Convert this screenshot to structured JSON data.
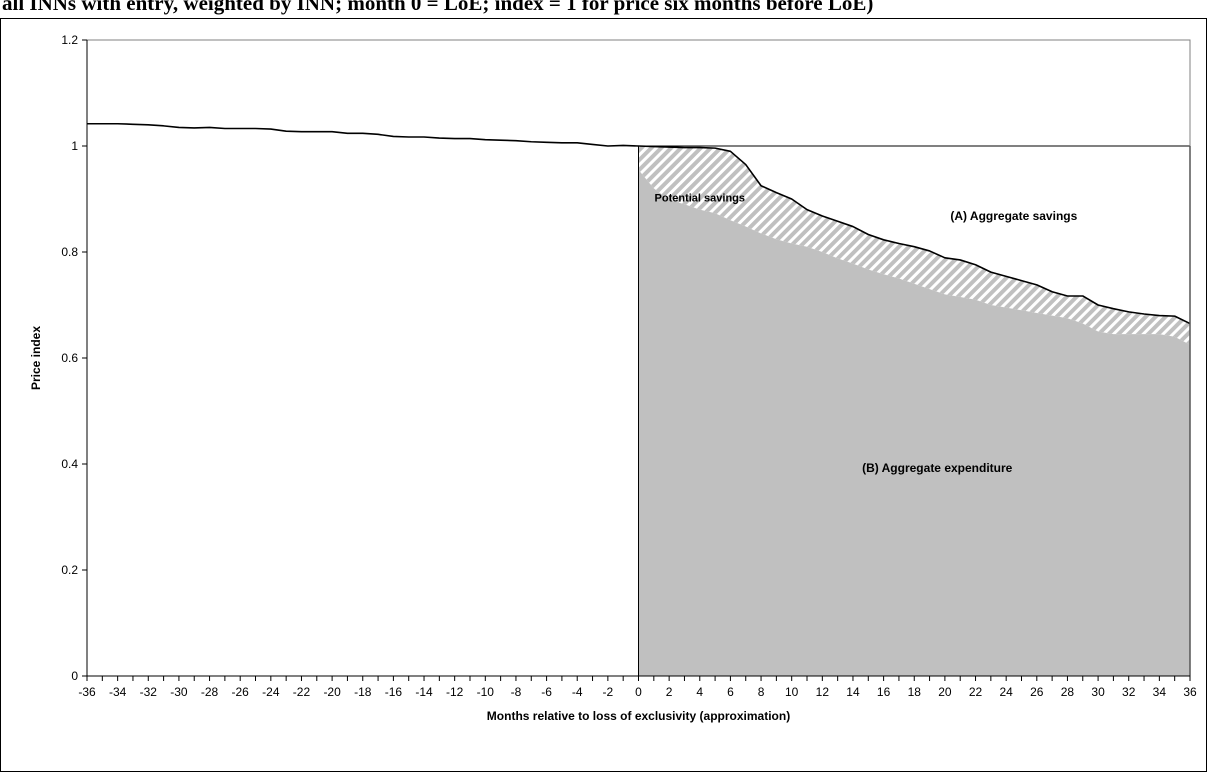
{
  "caption": "all INNs with entry, weighted by INN; month 0 = LoE; index = 1 for price six months before LoE)",
  "chart_data": {
    "type": "area",
    "title": "",
    "xlabel": "Months relative to loss of exclusivity (approximation)",
    "ylabel": "Price index",
    "xlim": [
      -36,
      36
    ],
    "ylim": [
      0,
      1.2
    ],
    "x_ticks": [
      -36,
      -34,
      -32,
      -30,
      -28,
      -26,
      -24,
      -22,
      -20,
      -18,
      -16,
      -14,
      -12,
      -10,
      -8,
      -6,
      -4,
      -2,
      0,
      2,
      4,
      6,
      8,
      10,
      12,
      14,
      16,
      18,
      20,
      22,
      24,
      26,
      28,
      30,
      32,
      34,
      36
    ],
    "x_tick_labels": [
      "-36",
      "-34",
      "-32",
      "-30",
      "-28",
      "-26",
      "-24",
      "-22",
      "-20",
      "-18",
      "-16",
      "-14",
      "-12",
      "-10",
      "-8",
      "-6",
      "-4",
      "-2",
      "0",
      "2",
      "4",
      "6",
      "8",
      "10",
      "12",
      "14",
      "16",
      "18",
      "20",
      "22",
      "24",
      "26",
      "28",
      "30",
      "32",
      "34",
      "36"
    ],
    "y_ticks": [
      0,
      0.2,
      0.4,
      0.6,
      0.8,
      1,
      1.2
    ],
    "y_tick_labels": [
      "0",
      "0.2",
      "0.4",
      "0.6",
      "0.8",
      "1",
      "1.2"
    ],
    "grid": false,
    "reference_line": {
      "y": 1,
      "x_from": 0,
      "x_to": 36
    },
    "series": [
      {
        "role": "price-index-line",
        "x": [
          -36,
          -35,
          -34,
          -33,
          -32,
          -31,
          -30,
          -29,
          -28,
          -27,
          -26,
          -25,
          -24,
          -23,
          -22,
          -21,
          -20,
          -19,
          -18,
          -17,
          -16,
          -15,
          -14,
          -13,
          -12,
          -11,
          -10,
          -9,
          -8,
          -7,
          -6,
          -5,
          -4,
          -3,
          -2,
          -1,
          0,
          1,
          2,
          3,
          4,
          5,
          6,
          7,
          8,
          9,
          10,
          11,
          12,
          13,
          14,
          15,
          16,
          17,
          18,
          19,
          20,
          21,
          22,
          23,
          24,
          25,
          26,
          27,
          28,
          29,
          30,
          31,
          32,
          33,
          34,
          35,
          36
        ],
        "values": [
          1.042,
          1.042,
          1.042,
          1.041,
          1.04,
          1.038,
          1.035,
          1.034,
          1.035,
          1.033,
          1.033,
          1.033,
          1.032,
          1.028,
          1.027,
          1.027,
          1.027,
          1.024,
          1.024,
          1.022,
          1.018,
          1.017,
          1.017,
          1.015,
          1.014,
          1.014,
          1.012,
          1.011,
          1.01,
          1.008,
          1.007,
          1.006,
          1.006,
          1.003,
          1.0,
          1.001,
          1.0,
          0.999,
          0.998,
          0.997,
          0.997,
          0.996,
          0.99,
          0.965,
          0.925,
          0.912,
          0.9,
          0.88,
          0.868,
          0.858,
          0.848,
          0.833,
          0.823,
          0.816,
          0.81,
          0.802,
          0.789,
          0.785,
          0.776,
          0.762,
          0.754,
          0.746,
          0.738,
          0.725,
          0.717,
          0.717,
          0.7,
          0.693,
          0.687,
          0.683,
          0.68,
          0.679,
          0.665
        ]
      },
      {
        "role": "expenditure-boundary",
        "x": [
          0,
          1,
          2,
          3,
          4,
          5,
          6,
          7,
          8,
          9,
          10,
          11,
          12,
          13,
          14,
          15,
          16,
          17,
          18,
          19,
          20,
          21,
          22,
          23,
          24,
          25,
          26,
          27,
          28,
          29,
          30,
          31,
          32,
          33,
          34,
          35,
          36
        ],
        "values": [
          0.955,
          0.92,
          0.898,
          0.89,
          0.88,
          0.873,
          0.86,
          0.848,
          0.835,
          0.824,
          0.816,
          0.81,
          0.8,
          0.788,
          0.778,
          0.767,
          0.758,
          0.75,
          0.74,
          0.73,
          0.72,
          0.715,
          0.71,
          0.7,
          0.695,
          0.69,
          0.685,
          0.68,
          0.675,
          0.665,
          0.65,
          0.645,
          0.645,
          0.645,
          0.645,
          0.64,
          0.625
        ]
      }
    ],
    "annotations": [
      {
        "text": "Potential savings",
        "x": 4,
        "y": 0.895
      },
      {
        "text": "(A) Aggregate savings",
        "x": 24.5,
        "y": 0.86
      },
      {
        "text": "(B) Aggregate expenditure",
        "x": 19.5,
        "y": 0.385
      }
    ],
    "colors": {
      "line": "#000000",
      "expenditure_fill": "#c0c0c0",
      "hatch_fill": "#c0c0c0",
      "hatch_stripe": "#ffffff",
      "axis": "#000000"
    }
  }
}
